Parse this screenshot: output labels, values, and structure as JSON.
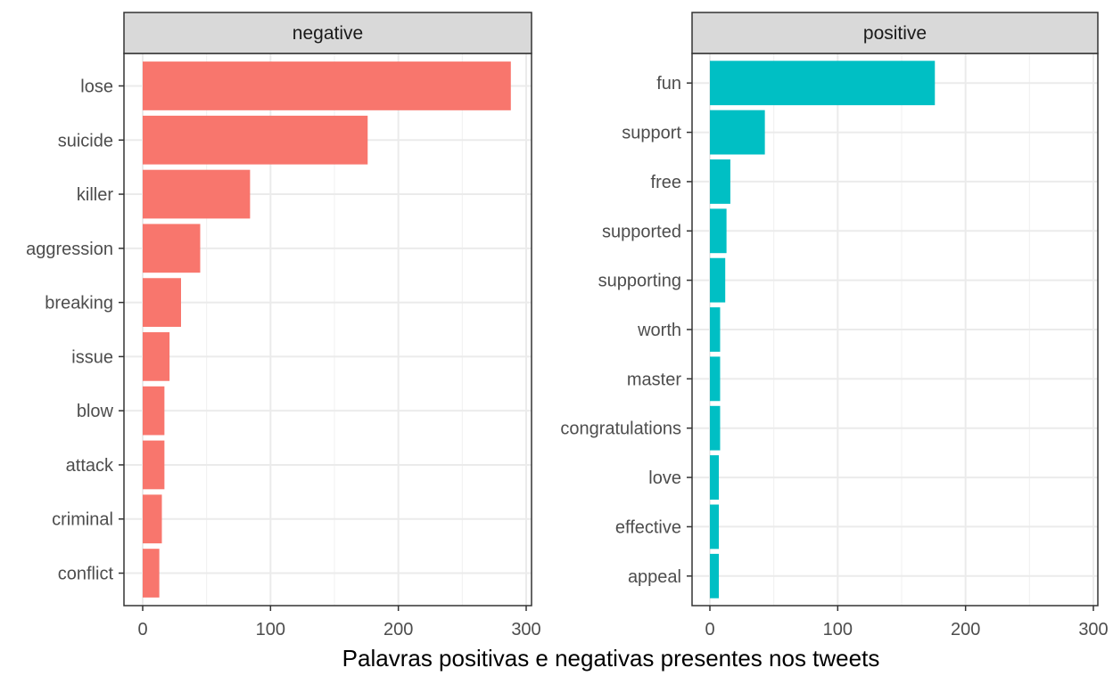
{
  "chart_data": {
    "type": "bar",
    "orientation": "horizontal",
    "xlabel": "Palavras positivas e negativas presentes nos tweets",
    "xlim": [
      0,
      300
    ],
    "xticks": [
      0,
      100,
      200,
      300
    ],
    "grid": true,
    "panels": [
      {
        "name": "negative",
        "color": "#F8766D",
        "categories": [
          "lose",
          "suicide",
          "killer",
          "aggression",
          "breaking",
          "issue",
          "blow",
          "attack",
          "criminal",
          "conflict"
        ],
        "values": [
          288,
          176,
          84,
          45,
          30,
          21,
          17,
          17,
          15,
          13
        ]
      },
      {
        "name": "positive",
        "color": "#00BFC4",
        "categories": [
          "fun",
          "support",
          "free",
          "supported",
          "supporting",
          "worth",
          "master",
          "congratulations",
          "love",
          "effective",
          "appeal"
        ],
        "values": [
          176,
          43,
          16,
          13,
          12,
          8,
          8,
          8,
          7,
          7,
          7
        ]
      }
    ]
  }
}
